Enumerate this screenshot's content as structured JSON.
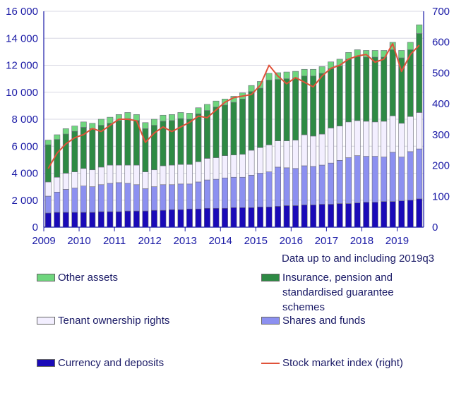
{
  "chart_data": {
    "type": "bar",
    "stacked": true,
    "note": "Data up to and including 2019q3",
    "x_tick_labels": [
      "2009",
      "2010",
      "2011",
      "2012",
      "2013",
      "2014",
      "2015",
      "2016",
      "2017",
      "2018",
      "2019"
    ],
    "y_left": {
      "range": [
        0,
        16000
      ],
      "ticks": [
        "0",
        "2 000",
        "4 000",
        "6 000",
        "8 000",
        "10 000",
        "12 000",
        "14 000",
        "16 000"
      ]
    },
    "y_right": {
      "range": [
        0,
        700
      ],
      "ticks": [
        "0",
        "100",
        "200",
        "300",
        "400",
        "500",
        "600",
        "700"
      ]
    },
    "quarters": [
      "2009q1",
      "2009q2",
      "2009q3",
      "2009q4",
      "2010q1",
      "2010q2",
      "2010q3",
      "2010q4",
      "2011q1",
      "2011q2",
      "2011q3",
      "2011q4",
      "2012q1",
      "2012q2",
      "2012q3",
      "2012q4",
      "2013q1",
      "2013q2",
      "2013q3",
      "2013q4",
      "2014q1",
      "2014q2",
      "2014q3",
      "2014q4",
      "2015q1",
      "2015q2",
      "2015q3",
      "2015q4",
      "2016q1",
      "2016q2",
      "2016q3",
      "2016q4",
      "2017q1",
      "2017q2",
      "2017q3",
      "2017q4",
      "2018q1",
      "2018q2",
      "2018q3",
      "2018q4",
      "2019q1",
      "2019q2",
      "2019q3"
    ],
    "series": [
      {
        "name": "Currency and deposits",
        "color": "#1a0ab8",
        "values": [
          1050,
          1100,
          1100,
          1100,
          1100,
          1100,
          1150,
          1150,
          1150,
          1200,
          1200,
          1200,
          1250,
          1250,
          1300,
          1300,
          1350,
          1350,
          1400,
          1400,
          1400,
          1450,
          1450,
          1450,
          1500,
          1500,
          1550,
          1600,
          1600,
          1650,
          1650,
          1700,
          1700,
          1750,
          1750,
          1800,
          1850,
          1850,
          1900,
          1900,
          1950,
          2000,
          2100
        ]
      },
      {
        "name": "Shares and funds",
        "color": "#8c90f0",
        "values": [
          1250,
          1500,
          1700,
          1800,
          1950,
          1900,
          2000,
          2100,
          2150,
          2050,
          1950,
          1650,
          1750,
          1900,
          1850,
          1900,
          1850,
          2000,
          2100,
          2150,
          2250,
          2250,
          2250,
          2400,
          2500,
          2600,
          2900,
          2800,
          2750,
          2900,
          2850,
          2900,
          3050,
          3200,
          3400,
          3500,
          3400,
          3400,
          3300,
          3650,
          3250,
          3600,
          3700
        ]
      },
      {
        "name": "Tenant ownership rights",
        "color": "#f3efff",
        "values": [
          1050,
          1100,
          1200,
          1200,
          1300,
          1250,
          1300,
          1350,
          1300,
          1350,
          1450,
          1250,
          1250,
          1400,
          1450,
          1450,
          1450,
          1500,
          1600,
          1600,
          1650,
          1650,
          1700,
          1850,
          1900,
          2000,
          1950,
          2000,
          2100,
          2300,
          2250,
          2300,
          2600,
          2550,
          2650,
          2600,
          2600,
          2550,
          2650,
          2700,
          2500,
          2600,
          2700
        ]
      },
      {
        "name": "Insurance, pension and standardised guarantee schemes",
        "color": "#2e8a44",
        "values": [
          2750,
          2800,
          2900,
          3000,
          3050,
          3050,
          3100,
          3100,
          3300,
          3450,
          3300,
          3200,
          3300,
          3300,
          3300,
          3400,
          3350,
          3550,
          3550,
          3750,
          3750,
          3900,
          4100,
          4350,
          4400,
          4800,
          4550,
          4600,
          4600,
          4350,
          4450,
          4500,
          4400,
          4450,
          4650,
          4750,
          4750,
          4800,
          4750,
          4900,
          4850,
          4950,
          5850
        ]
      },
      {
        "name": "Other assets",
        "color": "#6fd67e",
        "values": [
          350,
          350,
          400,
          400,
          400,
          400,
          450,
          450,
          450,
          450,
          450,
          450,
          450,
          450,
          450,
          450,
          450,
          450,
          450,
          450,
          450,
          450,
          450,
          450,
          500,
          500,
          500,
          500,
          500,
          500,
          500,
          500,
          500,
          500,
          500,
          500,
          500,
          500,
          500,
          550,
          550,
          550,
          650
        ]
      }
    ],
    "line_series": {
      "name": "Stock market index (right)",
      "color": "#e0523a",
      "axis": "right",
      "values": [
        190,
        240,
        270,
        290,
        300,
        320,
        310,
        330,
        350,
        350,
        345,
        275,
        305,
        325,
        310,
        325,
        340,
        360,
        355,
        380,
        405,
        420,
        425,
        430,
        460,
        525,
        490,
        465,
        485,
        470,
        455,
        490,
        515,
        525,
        545,
        555,
        560,
        535,
        545,
        595,
        505,
        560,
        590
      ]
    },
    "legend": {
      "other": "Other assets",
      "insurance_line1": "Insurance, pension and",
      "insurance_line2": "standardised guarantee",
      "insurance_line3": "schemes",
      "tenant": "Tenant ownership rights",
      "shares": "Shares and funds",
      "currency": "Currency and deposits",
      "stock": "Stock market index (right)"
    }
  }
}
